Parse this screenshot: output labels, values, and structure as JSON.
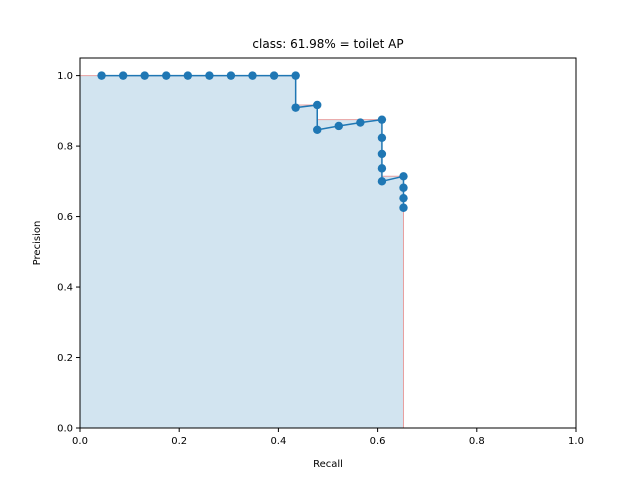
{
  "chart_data": {
    "type": "line",
    "title": "class: 61.98% = toilet AP",
    "xlabel": "Recall",
    "ylabel": "Precision",
    "xlim": [
      0.0,
      1.0
    ],
    "ylim": [
      0.0,
      1.05
    ],
    "xticks": [
      0.0,
      0.2,
      0.4,
      0.6,
      0.8,
      1.0
    ],
    "yticks": [
      0.0,
      0.2,
      0.4,
      0.6,
      0.8,
      1.0
    ],
    "xtick_labels": [
      "0.0",
      "0.2",
      "0.4",
      "0.6",
      "0.8",
      "1.0"
    ],
    "ytick_labels": [
      "0.0",
      "0.2",
      "0.4",
      "0.6",
      "0.8",
      "1.0"
    ],
    "grid": false,
    "colors": {
      "line": "#1f77b4",
      "fill": "#1f77b4",
      "fill_edge": "#e8a0a0"
    },
    "series": [
      {
        "x": [
          0.0435,
          0.087,
          0.1304,
          0.1739,
          0.2174,
          0.2609,
          0.3043,
          0.3478,
          0.3913,
          0.4348,
          0.4348,
          0.4783,
          0.4783,
          0.5217,
          0.5652,
          0.6087,
          0.6087,
          0.6087,
          0.6087,
          0.6087,
          0.6522,
          0.6522,
          0.6522,
          0.6522
        ],
        "y": [
          1.0,
          1.0,
          1.0,
          1.0,
          1.0,
          1.0,
          1.0,
          1.0,
          1.0,
          1.0,
          0.9091,
          0.9167,
          0.8462,
          0.8571,
          0.8667,
          0.875,
          0.8235,
          0.7778,
          0.7368,
          0.7,
          0.7143,
          0.6818,
          0.6522,
          0.625
        ]
      }
    ],
    "area": {
      "x": [
        0.0,
        0.0,
        0.4348,
        0.4348,
        0.4783,
        0.4783,
        0.6087,
        0.6087,
        0.6522,
        0.6522,
        0.6522
      ],
      "y": [
        0.0,
        1.0,
        1.0,
        0.9167,
        0.9167,
        0.875,
        0.875,
        0.7143,
        0.7143,
        0.0,
        0.0
      ]
    }
  }
}
